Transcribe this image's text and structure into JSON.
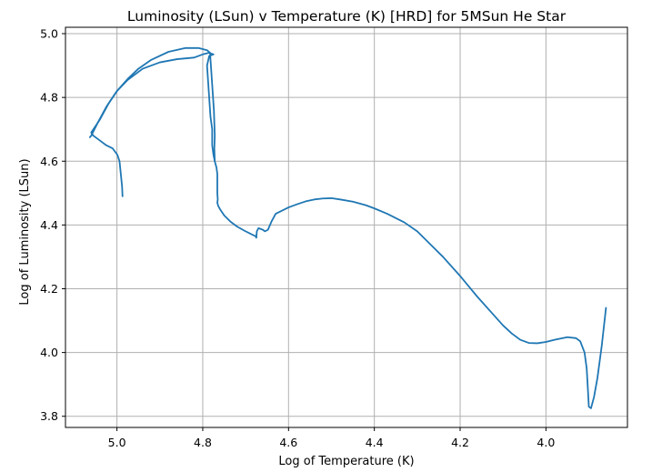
{
  "chart_data": {
    "type": "line",
    "title": "Luminosity (LSun) v Temperature (K) [HRD] for 5MSun He Star",
    "xlabel": "Log of Temperature (K)",
    "ylabel": "Log of Luminosity (LSun)",
    "x_inverted": true,
    "xlim": [
      5.12,
      3.81
    ],
    "ylim": [
      3.765,
      5.02
    ],
    "grid": true,
    "x_ticks": [
      5.0,
      4.8,
      4.6,
      4.4,
      4.2,
      4.0
    ],
    "x_tick_labels": [
      "5.0",
      "4.8",
      "4.6",
      "4.4",
      "4.2",
      "4.0"
    ],
    "y_ticks": [
      3.8,
      4.0,
      4.2,
      4.4,
      4.6,
      4.8,
      5.0
    ],
    "y_tick_labels": [
      "3.8",
      "4.0",
      "4.2",
      "4.4",
      "4.6",
      "4.8",
      "5.0"
    ],
    "colors": {
      "series": "#1f77b4",
      "grid": "#b0b0b0",
      "axes": "#000000"
    },
    "series": [
      {
        "x": [
          4.987,
          4.988,
          4.991,
          4.994,
          4.999,
          5.01,
          5.025,
          5.04,
          5.055,
          5.06,
          5.055,
          5.04,
          5.02,
          5.0,
          4.975,
          4.94,
          4.9,
          4.86,
          4.82,
          4.8,
          4.785,
          4.775,
          4.785,
          4.79,
          4.785,
          4.782,
          4.778,
          4.778,
          4.775,
          4.772,
          4.768,
          4.766,
          4.766,
          4.765,
          4.766,
          4.764,
          4.76,
          4.75,
          4.735,
          4.72,
          4.7,
          4.685,
          4.677,
          4.675,
          4.674,
          4.67,
          4.66,
          4.655,
          4.648,
          4.64,
          4.63,
          4.615,
          4.6,
          4.58,
          4.56,
          4.54,
          4.52,
          4.5,
          4.48,
          4.45,
          4.42,
          4.4,
          4.37,
          4.33,
          4.3,
          4.27,
          4.24,
          4.2,
          4.16,
          4.12,
          4.1,
          4.08,
          4.06,
          4.04,
          4.02,
          4.0,
          3.98,
          3.95,
          3.93,
          3.92,
          3.91,
          3.905,
          3.902,
          3.9,
          3.895,
          3.888,
          3.88,
          3.87,
          3.86
        ],
        "y": [
          4.49,
          4.52,
          4.56,
          4.6,
          4.62,
          4.64,
          4.65,
          4.665,
          4.68,
          4.69,
          4.7,
          4.73,
          4.78,
          4.82,
          4.855,
          4.89,
          4.91,
          4.92,
          4.925,
          4.935,
          4.94,
          4.935,
          4.93,
          4.9,
          4.8,
          4.74,
          4.7,
          4.65,
          4.62,
          4.6,
          4.58,
          4.56,
          4.5,
          4.48,
          4.47,
          4.46,
          4.45,
          4.43,
          4.41,
          4.395,
          4.38,
          4.37,
          4.365,
          4.36,
          4.38,
          4.39,
          4.385,
          4.38,
          4.385,
          4.41,
          4.435,
          4.445,
          4.455,
          4.465,
          4.474,
          4.48,
          4.483,
          4.484,
          4.48,
          4.473,
          4.462,
          4.452,
          4.435,
          4.408,
          4.38,
          4.34,
          4.3,
          4.24,
          4.175,
          4.115,
          4.085,
          4.06,
          4.04,
          4.03,
          4.029,
          4.033,
          4.04,
          4.048,
          4.045,
          4.035,
          4.0,
          3.95,
          3.88,
          3.83,
          3.825,
          3.86,
          3.92,
          4.02,
          4.14
        ]
      },
      {
        "x": [
          5.063,
          5.06,
          5.045,
          5.025,
          5.0,
          4.975,
          4.95,
          4.92,
          4.88,
          4.84,
          4.81,
          4.79,
          4.783,
          4.78,
          4.777,
          4.774,
          4.773,
          4.772,
          4.773,
          4.772
        ],
        "y": [
          4.675,
          4.68,
          4.72,
          4.77,
          4.82,
          4.858,
          4.89,
          4.918,
          4.943,
          4.955,
          4.955,
          4.948,
          4.94,
          4.88,
          4.82,
          4.76,
          4.72,
          4.68,
          4.64,
          4.6
        ]
      }
    ]
  }
}
